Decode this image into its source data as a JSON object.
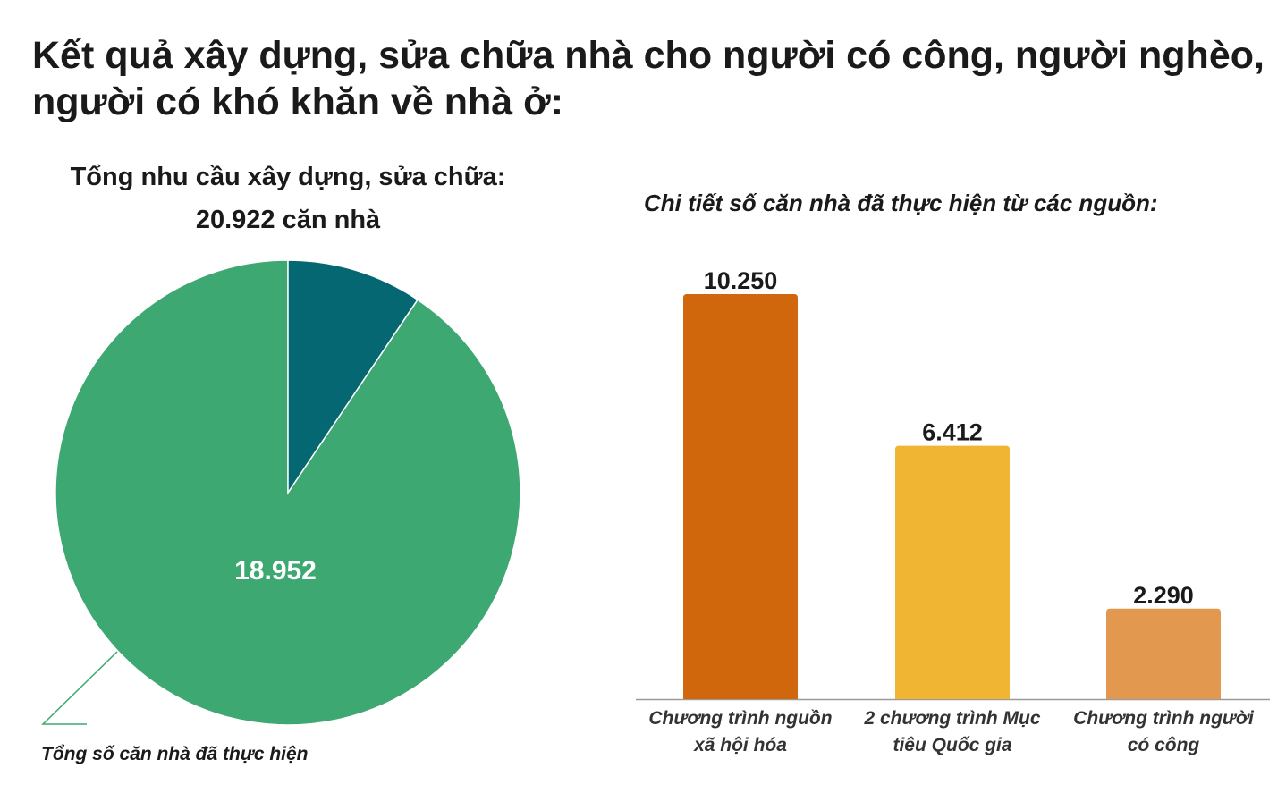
{
  "headline": {
    "line1": "Kết quả xây dựng, sửa chữa nhà cho người có công, người nghèo,",
    "line2": "người có khó khăn về nhà ở:"
  },
  "colors": {
    "pie_done": "#3ea872",
    "pie_remaining": "#046772",
    "bar_1": "#d0670d",
    "bar_2": "#f0b532",
    "bar_3": "#e3984f",
    "baseline": "#9a9a9a",
    "leader_line": "#3ea872"
  },
  "chart_data": [
    {
      "type": "pie",
      "title": "Tổng nhu cầu xây dựng, sửa chữa:",
      "subtitle": "20.922 căn nhà",
      "total": 20922,
      "slices": [
        {
          "value": 18952,
          "label": "18.952",
          "annotation": "Tổng số căn nhà đã thực hiện",
          "color": "#3ea872"
        },
        {
          "value": 1970,
          "label": "",
          "color": "#046772"
        }
      ]
    },
    {
      "type": "bar",
      "title": "Chi tiết số căn nhà đã thực hiện từ các nguồn:",
      "categories": [
        [
          "Chương trình nguồn",
          "xã hội hóa"
        ],
        [
          "2 chương trình Mục",
          "tiêu Quốc gia"
        ],
        [
          "Chương trình người",
          "có công"
        ]
      ],
      "values": [
        10250,
        6412,
        2290
      ],
      "value_labels": [
        "10.250",
        "6.412",
        "2.290"
      ],
      "colors": [
        "#d0670d",
        "#f0b532",
        "#e3984f"
      ],
      "ylim": [
        0,
        10250
      ],
      "grid": false,
      "y_axis_visible": false
    }
  ]
}
